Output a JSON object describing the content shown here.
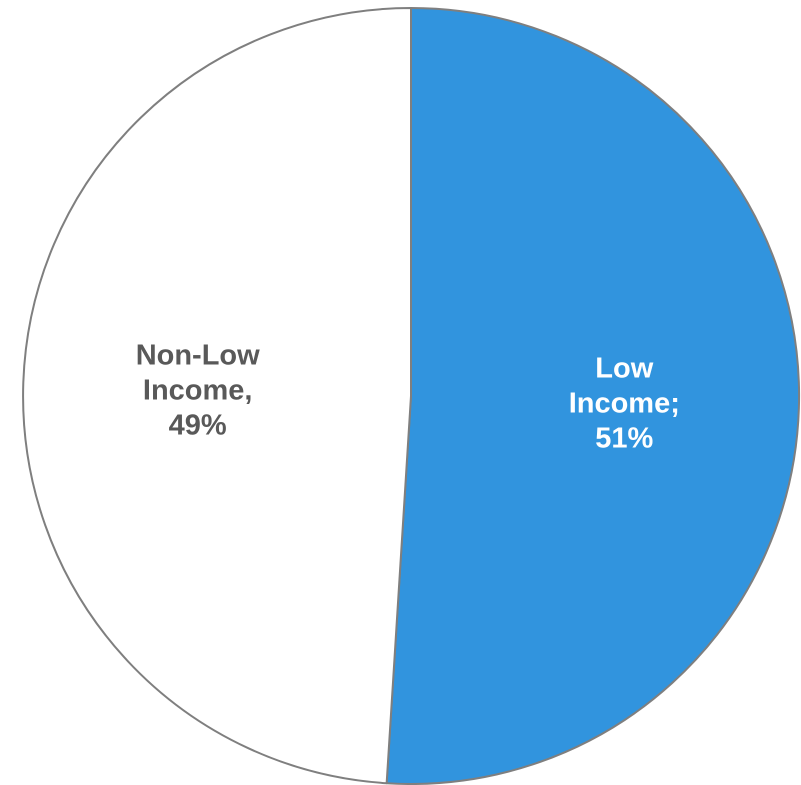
{
  "chart_data": {
    "type": "pie",
    "slices": [
      {
        "category": "Low Income",
        "value": 51,
        "label_lines": [
          "Low",
          "Income;",
          "51%"
        ],
        "color": "#3194DE",
        "label_color": "#ffffff"
      },
      {
        "category": "Non-Low Income",
        "value": 49,
        "label_lines": [
          "Non-Low",
          "Income,",
          "49%"
        ],
        "color": "#ffffff",
        "label_color": "#595959"
      }
    ],
    "start_angle_deg": 0,
    "direction": "clockwise",
    "border_color": "#7f7f7f"
  }
}
